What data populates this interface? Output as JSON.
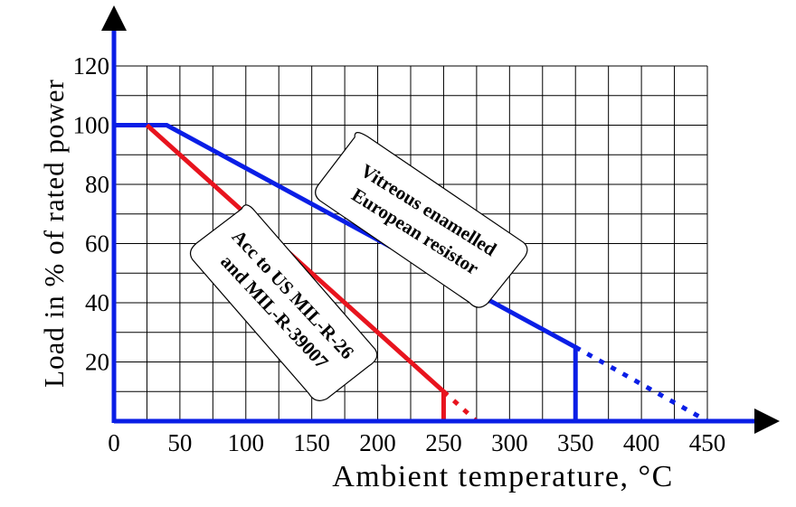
{
  "chart_data": {
    "type": "line",
    "xlabel": "Ambient temperature, °C",
    "ylabel": "Load in % of rated power",
    "xlim": [
      0,
      450
    ],
    "ylim": [
      0,
      120
    ],
    "x_ticks": [
      0,
      50,
      100,
      150,
      200,
      250,
      300,
      350,
      400,
      450
    ],
    "y_ticks": [
      20,
      40,
      60,
      80,
      100,
      120
    ],
    "grid": true,
    "series": [
      {
        "name": "Vitreous enamelled European resistor",
        "color": "#0a1ee6",
        "points": [
          [
            0,
            100
          ],
          [
            40,
            100
          ],
          [
            350,
            25
          ],
          [
            350,
            0
          ]
        ],
        "extrapolated": [
          [
            350,
            25
          ],
          [
            450,
            0
          ]
        ]
      },
      {
        "name": "Acc to US MIL-R-26 and MIL-R-39007",
        "color": "#e8141e",
        "points": [
          [
            25,
            100
          ],
          [
            250,
            10
          ],
          [
            250,
            0
          ]
        ],
        "extrapolated": [
          [
            250,
            10
          ],
          [
            275,
            0
          ]
        ]
      }
    ],
    "annotations": [
      {
        "lines": [
          "Vitreous enamelled",
          "European resistor"
        ]
      },
      {
        "lines": [
          "Acc to US MIL-R-26",
          "and MIL-R-39007"
        ]
      }
    ]
  }
}
